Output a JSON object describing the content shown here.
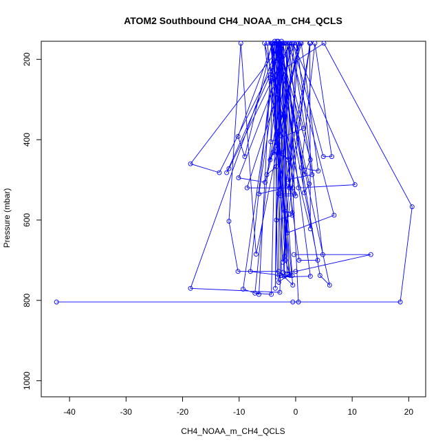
{
  "chart_data": {
    "type": "line",
    "title": "ATOM2 Southbound CH4_NOAA_m_CH4_QCLS",
    "xlabel": "CH4_NOAA_m_CH4_QCLS",
    "ylabel": "Pressure (mbar)",
    "xlim": [
      -45,
      23
    ],
    "ylim": [
      1040,
      155
    ],
    "y_reversed": true,
    "x_ticks": [
      -40,
      -30,
      -20,
      -10,
      0,
      10,
      20
    ],
    "y_ticks": [
      200,
      400,
      600,
      800,
      1000
    ],
    "grid": false,
    "legend": "none",
    "line_color": "#0000ff",
    "marker": "open-circle",
    "series": [
      {
        "points": [
          [
            -42.3,
            804
          ],
          [
            -0.5,
            804
          ],
          [
            18.5,
            804
          ],
          [
            20.6,
            567
          ],
          [
            5.0,
            160
          ],
          [
            -4.5,
            245
          ],
          [
            -6.5,
            785
          ],
          [
            -9.3,
            772
          ],
          [
            -3.1,
            155
          ],
          [
            -3.6,
            770
          ],
          [
            -2.6,
            160
          ],
          [
            -1.5,
            735
          ],
          [
            -3.3,
            155
          ],
          [
            -4.3,
            785
          ],
          [
            -7.2,
            782
          ],
          [
            -2.5,
            155
          ],
          [
            -1.2,
            735
          ],
          [
            -3.0,
            755
          ],
          [
            -2.8,
            160
          ],
          [
            2.6,
            740
          ],
          [
            -3.2,
            742
          ],
          [
            -3.8,
            160
          ],
          [
            -2.5,
            738
          ],
          [
            -8.0,
            728
          ],
          [
            -3.7,
            155
          ],
          [
            -0.6,
            738
          ],
          [
            -2.0,
            740
          ],
          [
            -1.5,
            160
          ],
          [
            -2.8,
            780
          ],
          [
            -18.6,
            770
          ],
          [
            -3.1,
            160
          ],
          [
            -1.8,
            700
          ],
          [
            -1.0,
            738
          ],
          [
            -5.0,
            160
          ],
          [
            -0.5,
            762
          ],
          [
            -3.0,
            728
          ],
          [
            -10.2,
            728
          ],
          [
            -11.8,
            603
          ],
          [
            -9.7,
            160
          ],
          [
            -7.0,
            685
          ],
          [
            0.5,
            160
          ],
          [
            -2.2,
            730
          ],
          [
            0.0,
            728
          ],
          [
            13.3,
            686
          ],
          [
            -0.3,
            686
          ],
          [
            4.8,
            686
          ],
          [
            0.2,
            160
          ],
          [
            -1.9,
            690
          ],
          [
            -4.4,
            160
          ],
          [
            0.6,
            700
          ],
          [
            3.9,
            700
          ],
          [
            -3.5,
            160
          ],
          [
            -2.3,
            705
          ],
          [
            2.5,
            160
          ],
          [
            2.6,
            622
          ],
          [
            -5.5,
            160
          ],
          [
            -1.5,
            632
          ],
          [
            6.8,
            588
          ],
          [
            -1.2,
            160
          ],
          [
            -3.4,
            600
          ],
          [
            -0.6,
            588
          ],
          [
            -2.6,
            160
          ],
          [
            -6.5,
            535
          ],
          [
            -2.8,
            523
          ],
          [
            -0.3,
            160
          ],
          [
            -8.6,
            520
          ],
          [
            -1.1,
            520
          ],
          [
            2.6,
            160
          ],
          [
            -1.6,
            500
          ],
          [
            2.9,
            487
          ],
          [
            -0.7,
            160
          ],
          [
            -5.1,
            487
          ],
          [
            -3.4,
            467
          ],
          [
            -2.2,
            160
          ],
          [
            -1.0,
            448
          ],
          [
            -4.0,
            432
          ],
          [
            0.8,
            160
          ],
          [
            -4.5,
            450
          ],
          [
            -3.1,
            410
          ],
          [
            -4.2,
            160
          ],
          [
            -9.0,
            442
          ],
          [
            -10.2,
            392
          ],
          [
            -4.0,
            160
          ],
          [
            -4.4,
            405
          ],
          [
            1.4,
            372
          ],
          [
            -2.3,
            160
          ],
          [
            -18.6,
            460
          ],
          [
            -13.5,
            482
          ],
          [
            -2.0,
            160
          ],
          [
            -12.2,
            482
          ],
          [
            -11.8,
            472
          ],
          [
            -1.0,
            160
          ],
          [
            -10.1,
            495
          ],
          [
            -5.4,
            506
          ],
          [
            1.0,
            160
          ],
          [
            4.0,
            478
          ],
          [
            1.0,
            470
          ],
          [
            3.4,
            160
          ],
          [
            6.4,
            442
          ],
          [
            4.9,
            442
          ],
          [
            -0.5,
            160
          ],
          [
            10.5,
            512
          ],
          [
            0.5,
            520
          ],
          [
            -2.5,
            160
          ],
          [
            -3.0,
            535
          ],
          [
            -0.2,
            535
          ],
          [
            -1.2,
            160
          ],
          [
            1.5,
            532
          ],
          [
            2.4,
            510
          ],
          [
            -3.0,
            160
          ],
          [
            -0.6,
            582
          ],
          [
            -1.9,
            578
          ],
          [
            -4.1,
            160
          ],
          [
            0.0,
            540
          ],
          [
            -2.6,
            540
          ],
          [
            -3.3,
            160
          ],
          [
            6.0,
            762
          ],
          [
            4.3,
            738
          ],
          [
            -2.6,
            160
          ],
          [
            1.5,
            486
          ],
          [
            2.6,
            450
          ],
          [
            -3.0,
            160
          ],
          [
            -2.4,
            433
          ],
          [
            -1.4,
            450
          ],
          [
            -2.5,
            160
          ],
          [
            -1.6,
            515
          ],
          [
            -0.5,
            520
          ],
          [
            -1.8,
            160
          ],
          [
            0.5,
            804
          ]
        ]
      }
    ]
  }
}
